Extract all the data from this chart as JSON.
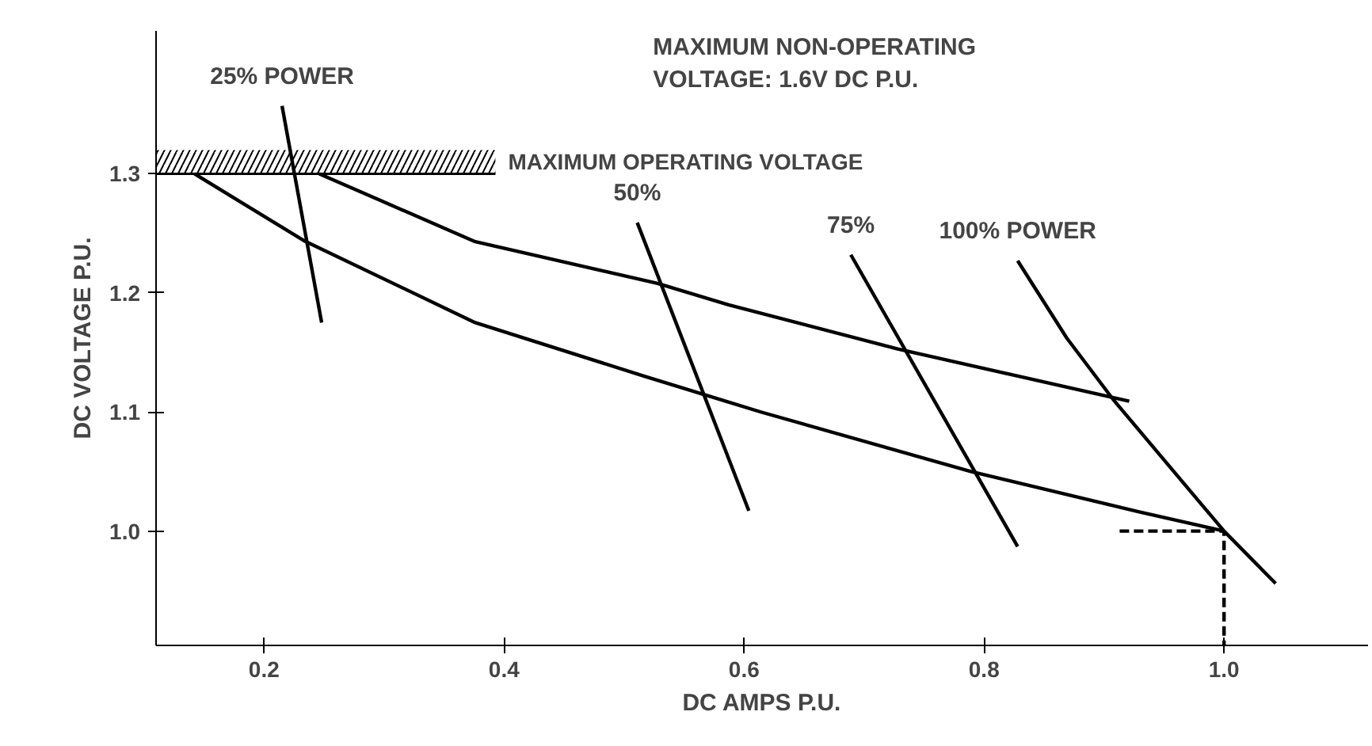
{
  "chart_data": {
    "type": "line",
    "xlabel": "DC AMPS P.U.",
    "ylabel": "DC VOLTAGE P.U.",
    "xlim": [
      0.11,
      1.12
    ],
    "ylim": [
      0.904,
      1.42
    ],
    "xticks": [
      0.2,
      0.4,
      0.6,
      0.8,
      {
        "value": 1,
        "label": "1.0"
      }
    ],
    "yticks": [
      {
        "value": 1,
        "label": "1.0"
      },
      1.1,
      1.2,
      1.3
    ],
    "grid": false,
    "marker": "none",
    "line_style": "solid",
    "series": [
      {
        "color": "#000000",
        "x": [
          0.142,
          0.233,
          0.376,
          0.517,
          0.614,
          0.789,
          0.93,
          1.0
        ],
        "values": [
          1.3,
          1.244,
          1.175,
          1.13,
          1.1,
          1.05,
          1.016,
          1.0
        ]
      },
      {
        "color": "#000000",
        "x": [
          0.246,
          0.376,
          0.528,
          0.587,
          0.728,
          0.921
        ],
        "values": [
          1.3,
          1.243,
          1.208,
          1.19,
          1.153,
          1.109
        ]
      },
      {
        "name": "25% POWER",
        "color": "#000000",
        "x": [
          0.215,
          0.248
        ],
        "values": [
          1.357,
          1.175
        ]
      },
      {
        "name": "50%",
        "color": "#000000",
        "x": [
          0.511,
          0.604
        ],
        "values": [
          1.259,
          1.017
        ]
      },
      {
        "name": "75%",
        "color": "#000000",
        "x": [
          0.689,
          0.828
        ],
        "values": [
          1.232,
          0.987
        ]
      },
      {
        "name": "100% POWER",
        "color": "#000000",
        "x": [
          0.828,
          0.869,
          0.908,
          1.0,
          1.043
        ],
        "values": [
          1.227,
          1.162,
          1.11,
          1.0,
          0.956
        ]
      },
      {
        "color": "#000000",
        "line_style": "dashed",
        "x": [
          0.913,
          1.0,
          1.0
        ],
        "values": [
          1.0,
          1.0,
          0.904
        ]
      }
    ],
    "bands": [
      {
        "axis": "y",
        "from": 1.3,
        "to": 1.32,
        "label": "MAXIMUM OPERATING VOLTAGE",
        "color": "#000000"
      }
    ],
    "annotations": [
      "MAXIMUM NON-OPERATING\nVOLTAGE: 1.6V DC P.U."
    ]
  }
}
